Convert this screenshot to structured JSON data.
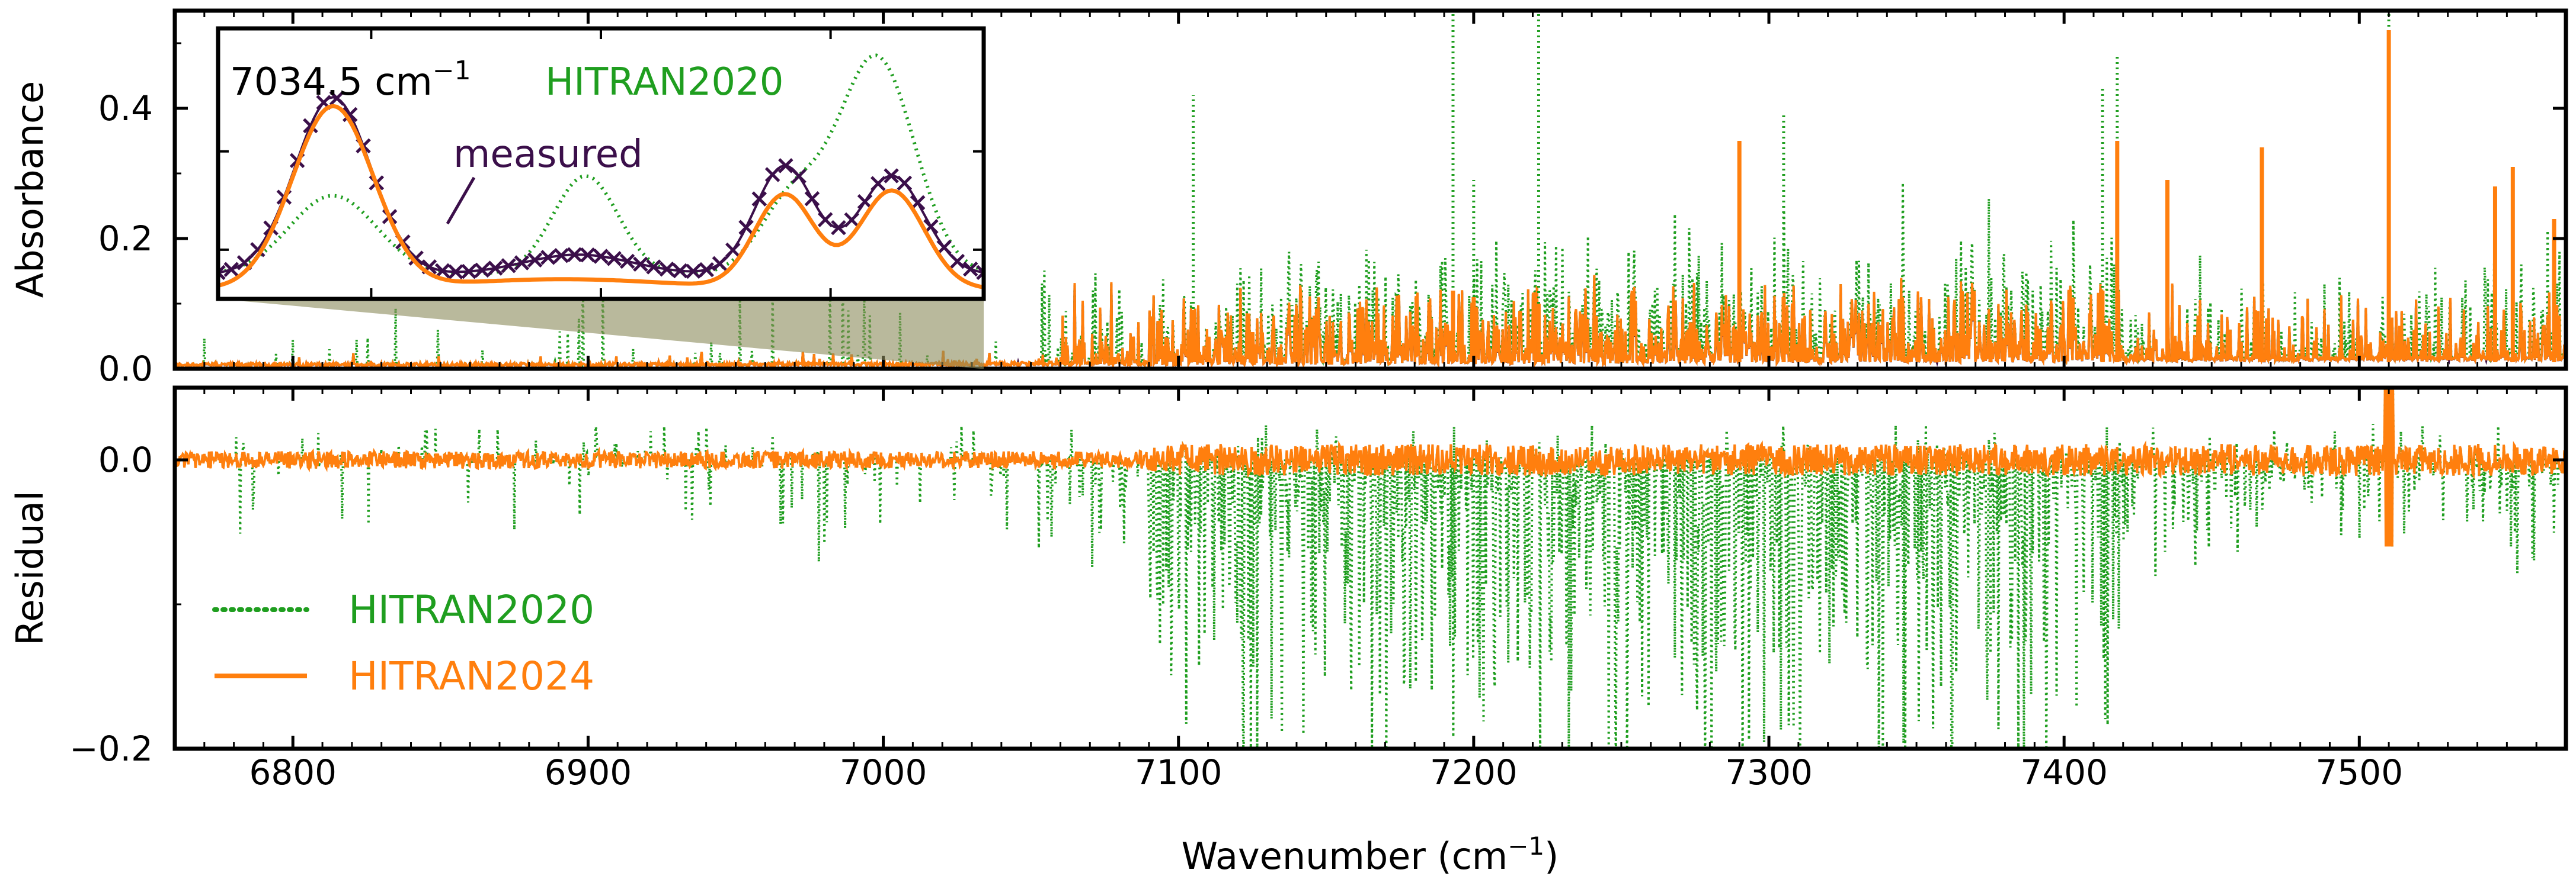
{
  "chart_data": [
    {
      "panel": "absorbance",
      "type": "line",
      "ylabel": "Absorbance",
      "xlim": [
        6760,
        7570
      ],
      "ylim": [
        0.0,
        0.55
      ],
      "yticks": [
        0.0,
        0.2,
        0.4
      ],
      "ytick_labels": [
        "0.0",
        "0.2",
        "0.4"
      ],
      "series": [
        {
          "name": "measured",
          "color": "#3b0f4a",
          "style": "solid"
        },
        {
          "name": "HITRAN2020",
          "color": "#1f9e1f",
          "style": "dotted"
        },
        {
          "name": "HITRAN2024",
          "color": "#ff7f0e",
          "style": "solid"
        }
      ],
      "peaks": [
        {
          "x": 7193,
          "hitran2020": 0.55,
          "hitran2024": 0.12
        },
        {
          "x": 7222,
          "hitran2020": 0.55,
          "hitran2024": 0.1
        },
        {
          "x": 7200,
          "hitran2020": 0.29,
          "hitran2024": 0.11
        },
        {
          "x": 7105,
          "hitran2020": 0.42,
          "hitran2024": 0.09
        },
        {
          "x": 7290,
          "hitran2020": 0.35,
          "hitran2024": 0.35
        },
        {
          "x": 7305,
          "hitran2020": 0.39,
          "hitran2024": 0.11
        },
        {
          "x": 7413,
          "hitran2020": 0.43,
          "hitran2024": 0.12
        },
        {
          "x": 7418,
          "hitran2020": 0.48,
          "hitran2024": 0.35
        },
        {
          "x": 7435,
          "hitran2020": 0.29,
          "hitran2024": 0.29
        },
        {
          "x": 7467,
          "hitran2020": 0.34,
          "hitran2024": 0.34
        },
        {
          "x": 7510,
          "hitran2020": 0.55,
          "hitran2024": 0.52
        },
        {
          "x": 7546,
          "hitran2020": 0.28,
          "hitran2024": 0.28
        },
        {
          "x": 7552,
          "hitran2020": 0.31,
          "hitran2024": 0.31
        },
        {
          "x": 7566,
          "hitran2020": 0.23,
          "hitran2024": 0.23
        }
      ]
    },
    {
      "panel": "residual",
      "type": "line",
      "ylabel": "Residual",
      "xlabel": "Wavenumber (cm⁻¹)",
      "xlim": [
        6760,
        7570
      ],
      "ylim": [
        -0.2,
        0.05
      ],
      "xticks": [
        6800,
        6900,
        7000,
        7100,
        7200,
        7300,
        7400,
        7500
      ],
      "xtick_labels": [
        "6800",
        "6900",
        "7000",
        "7100",
        "7200",
        "7300",
        "7400",
        "7500"
      ],
      "yticks": [
        -0.2,
        0.0
      ],
      "ytick_labels": [
        "−0.2",
        "0.0"
      ],
      "series": [
        {
          "name": "HITRAN2020",
          "color": "#1f9e1f",
          "style": "dotted",
          "note": "large negative residuals 7090–7420, clipped at −0.2"
        },
        {
          "name": "HITRAN2024",
          "color": "#ff7f0e",
          "style": "solid",
          "note": "small residuals within ±0.01, spike +0.05 / −0.06 near 7510"
        }
      ]
    },
    {
      "panel": "inset",
      "type": "line",
      "annotation": "7034.5 cm⁻¹",
      "zoom_window_x": [
        7028,
        7036
      ],
      "series": [
        {
          "name": "measured",
          "color": "#3b0f4a",
          "marker": "x"
        },
        {
          "name": "HITRAN2020",
          "color": "#1f9e1f",
          "style": "dotted"
        },
        {
          "name": "HITRAN2024",
          "color": "#ff7f0e",
          "style": "solid"
        }
      ]
    }
  ],
  "legend": [
    {
      "label": "HITRAN2020",
      "color": "#1f9e1f",
      "style": "dotted"
    },
    {
      "label": "HITRAN2024",
      "color": "#ff7f0e",
      "style": "solid"
    }
  ],
  "inset": {
    "position_label": "7034.5 cm",
    "position_sup": "−1",
    "hitran2020_label": "HITRAN2020",
    "measured_label": "measured"
  },
  "axes": {
    "top_ylabel": "Absorbance",
    "bottom_ylabel": "Residual",
    "xlabel_main": "Wavenumber (cm",
    "xlabel_sup": "−1",
    "xlabel_end": ")"
  },
  "colors": {
    "measured": "#3b0f4a",
    "hitran2020": "#1f9e1f",
    "hitran2024": "#ff7f0e"
  }
}
